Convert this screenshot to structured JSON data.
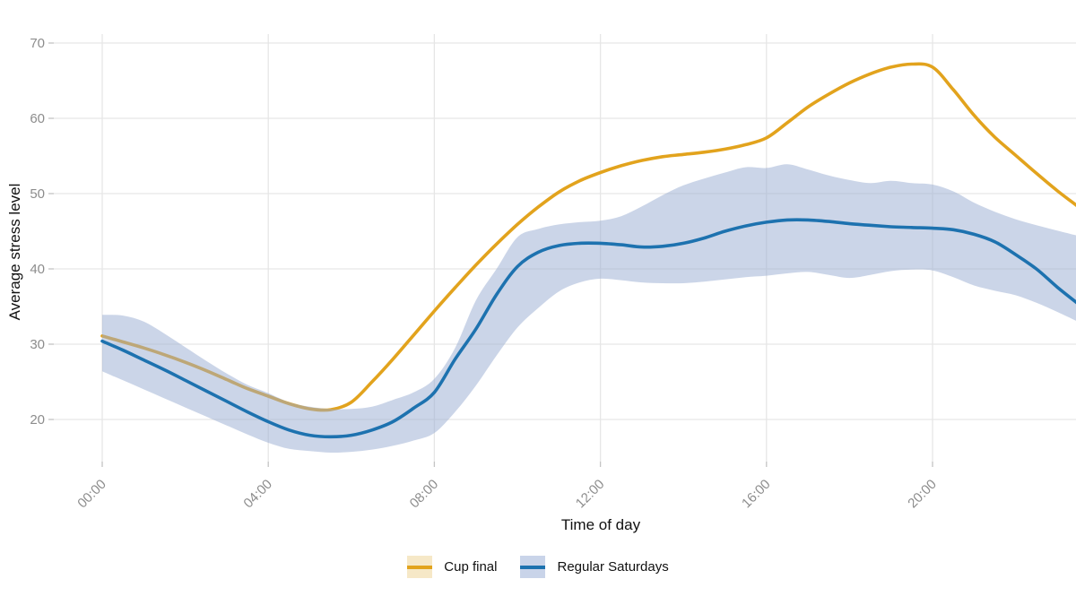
{
  "chart_data": {
    "type": "line",
    "title": "",
    "xlabel": "Time of day",
    "ylabel": "Average stress level",
    "x_axis": {
      "unit": "hours",
      "ticks": [
        {
          "hour": 0,
          "label": "00:00"
        },
        {
          "hour": 4,
          "label": "04:00"
        },
        {
          "hour": 8,
          "label": "08:00"
        },
        {
          "hour": 12,
          "label": "12:00"
        },
        {
          "hour": 16,
          "label": "16:00"
        },
        {
          "hour": 20,
          "label": "20:00"
        }
      ],
      "visible_range_hours": [
        0,
        23.5
      ]
    },
    "y_axis": {
      "ticks": [
        20,
        30,
        40,
        50,
        60,
        70
      ],
      "ylim": [
        14,
        73
      ]
    },
    "grid": true,
    "legend_position": "bottom",
    "x_hours": [
      0,
      0.5,
      1,
      1.5,
      2,
      2.5,
      3,
      3.5,
      4,
      4.5,
      5,
      5.5,
      6,
      6.5,
      7,
      7.5,
      8,
      8.5,
      9,
      9.5,
      10,
      10.5,
      11,
      11.5,
      12,
      12.5,
      13,
      13.5,
      14,
      14.5,
      15,
      15.5,
      16,
      16.5,
      17,
      17.5,
      18,
      18.5,
      19,
      19.5,
      20,
      20.5,
      21,
      21.5,
      22,
      22.5,
      23,
      23.5
    ],
    "series": [
      {
        "name": "Cup final",
        "color": "#E2A31D",
        "legend_fill": "#F6E8C7",
        "values": [
          31.1,
          30.3,
          29.5,
          28.6,
          27.6,
          26.5,
          25.3,
          24.1,
          23.1,
          22.1,
          21.4,
          21.3,
          22.3,
          25.0,
          28.0,
          31.2,
          34.4,
          37.5,
          40.5,
          43.3,
          45.9,
          48.2,
          50.2,
          51.7,
          52.8,
          53.7,
          54.4,
          54.9,
          55.2,
          55.5,
          55.9,
          56.5,
          57.4,
          59.4,
          61.5,
          63.2,
          64.7,
          65.9,
          66.8,
          67.2,
          66.8,
          63.8,
          60.4,
          57.5,
          55.1,
          52.7,
          50.4,
          48.3
        ]
      },
      {
        "name": "Regular Saturdays",
        "color": "#1D72AF",
        "legend_fill": "#C9D4E9",
        "values": [
          30.4,
          29.2,
          27.9,
          26.6,
          25.2,
          23.8,
          22.4,
          21.0,
          19.7,
          18.6,
          17.9,
          17.7,
          17.9,
          18.6,
          19.7,
          21.5,
          23.6,
          28.0,
          32.0,
          36.6,
          40.3,
          42.2,
          43.1,
          43.4,
          43.4,
          43.2,
          42.9,
          43.0,
          43.4,
          44.1,
          45.0,
          45.7,
          46.2,
          46.5,
          46.5,
          46.3,
          46.0,
          45.8,
          45.6,
          45.5,
          45.4,
          45.2,
          44.6,
          43.6,
          41.9,
          40.0,
          37.6,
          35.4
        ],
        "band": {
          "label": "confidence-band",
          "fill": "#97ABD2",
          "opacity": 0.5,
          "lower": [
            26.4,
            25.2,
            24.0,
            22.8,
            21.6,
            20.4,
            19.2,
            18.0,
            16.9,
            16.1,
            15.8,
            15.6,
            15.7,
            16.0,
            16.5,
            17.2,
            18.2,
            21.0,
            24.5,
            28.5,
            32.2,
            34.8,
            37.0,
            38.2,
            38.7,
            38.5,
            38.2,
            38.1,
            38.1,
            38.3,
            38.6,
            38.9,
            39.1,
            39.4,
            39.6,
            39.2,
            38.8,
            39.2,
            39.7,
            39.9,
            39.8,
            38.9,
            37.8,
            37.1,
            36.5,
            35.5,
            34.3,
            33.0
          ],
          "upper": [
            33.9,
            33.8,
            33.0,
            31.4,
            29.6,
            27.8,
            26.1,
            24.6,
            23.5,
            22.3,
            21.7,
            21.4,
            21.4,
            21.7,
            22.6,
            23.6,
            25.4,
            29.5,
            35.8,
            40.0,
            44.2,
            45.3,
            45.9,
            46.2,
            46.4,
            47.0,
            48.3,
            49.8,
            51.1,
            52.0,
            52.8,
            53.5,
            53.4,
            53.9,
            53.2,
            52.4,
            51.8,
            51.4,
            51.7,
            51.4,
            51.2,
            50.3,
            48.8,
            47.6,
            46.6,
            45.8,
            45.1,
            44.4
          ]
        }
      }
    ]
  },
  "legend": {
    "items": [
      {
        "label": "Cup final"
      },
      {
        "label": "Regular Saturdays"
      }
    ]
  },
  "style": {
    "grid_color": "#E6E6E6",
    "tick_color": "#C4C4C4",
    "tick_text_color": "#8C8C8C",
    "axis_title_color": "#111111",
    "background": "#FFFFFF"
  }
}
